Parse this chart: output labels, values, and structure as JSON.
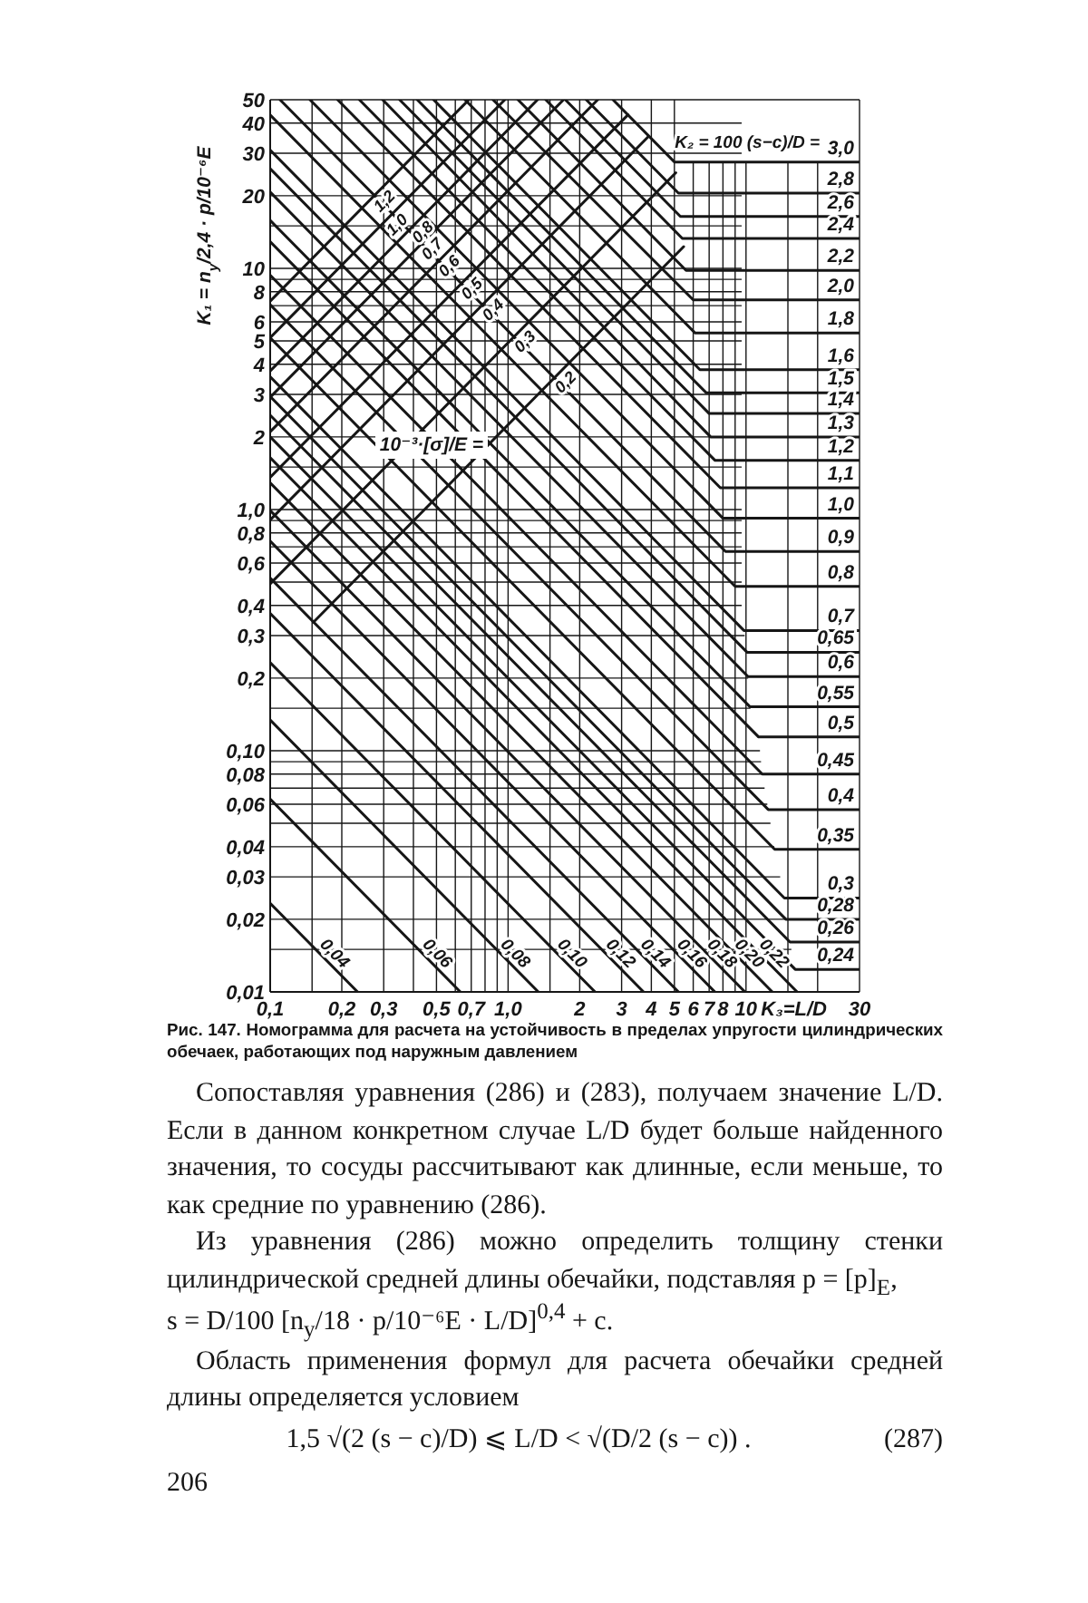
{
  "chart_data": {
    "type": "line",
    "title": "Рис. 147. Номограмма для расчета на устойчивость в пределах упругости цилиндрических обечаек, работающих под наружным давлением",
    "xlabel": "K₃=L/D",
    "ylabel": "K₁ = n$_{у}$/2,4 · p/10⁻⁶E",
    "log": "xy",
    "xlim": [
      0.1,
      30
    ],
    "ylim": [
      0.01,
      50
    ],
    "xticks": [
      {
        "value": 0.1,
        "label": "0,1"
      },
      {
        "value": 0.15,
        "label": null
      },
      {
        "value": 0.2,
        "label": "0,2"
      },
      {
        "value": 0.3,
        "label": "0,3"
      },
      {
        "value": 0.4,
        "label": null
      },
      {
        "value": 0.5,
        "label": "0,5"
      },
      {
        "value": 0.6,
        "label": null
      },
      {
        "value": 0.7,
        "label": "0,7"
      },
      {
        "value": 0.8,
        "label": null
      },
      {
        "value": 0.9,
        "label": null
      },
      {
        "value": 1,
        "label": "1,0"
      },
      {
        "value": 1.5,
        "label": null
      },
      2,
      3,
      4,
      5,
      6,
      7,
      8,
      {
        "value": 9,
        "label": null
      },
      10,
      {
        "value": 15,
        "label": null
      },
      {
        "value": 20,
        "label": null
      },
      30
    ],
    "yticks": [
      {
        "value": 0.01,
        "label": "0,01"
      },
      {
        "value": 0.015,
        "label": null
      },
      {
        "value": 0.02,
        "label": "0,02"
      },
      {
        "value": 0.03,
        "label": "0,03"
      },
      {
        "value": 0.04,
        "label": "0,04"
      },
      {
        "value": 0.05,
        "label": null
      },
      {
        "value": 0.06,
        "label": "0,06"
      },
      {
        "value": 0.07,
        "label": null
      },
      {
        "value": 0.08,
        "label": "0,08"
      },
      {
        "value": 0.09,
        "label": null
      },
      {
        "value": 0.1,
        "label": "0,10"
      },
      {
        "value": 0.15,
        "label": null
      },
      {
        "value": 0.2,
        "label": "0,2"
      },
      {
        "value": 0.3,
        "label": "0,3"
      },
      {
        "value": 0.4,
        "label": "0,4"
      },
      {
        "value": 0.5,
        "label": null
      },
      {
        "value": 0.6,
        "label": "0,6"
      },
      {
        "value": 0.7,
        "label": null
      },
      {
        "value": 0.8,
        "label": "0,8"
      },
      {
        "value": 0.9,
        "label": null
      },
      {
        "value": 1,
        "label": "1,0"
      },
      {
        "value": 1.5,
        "label": null
      },
      2,
      3,
      4,
      5,
      6,
      {
        "value": 7,
        "label": null
      },
      8,
      {
        "value": 9,
        "label": null
      },
      10,
      {
        "value": 15,
        "label": null
      },
      20,
      30,
      40,
      50
    ],
    "grid": true,
    "series": [
      {
        "name": "3,0",
        "color": "#161616",
        "x": [
          2.76,
          5.0,
          30
        ],
        "values": [
          50,
          27.6,
          27.6
        ]
      },
      {
        "name": "2,8",
        "color": "#161616",
        "x": [
          2.13,
          5.2,
          30
        ],
        "values": [
          50,
          20.5,
          20.5
        ]
      },
      {
        "name": "2,6",
        "color": "#161616",
        "x": [
          1.74,
          5.3,
          30
        ],
        "values": [
          50,
          16.4,
          16.4
        ]
      },
      {
        "name": "2,4",
        "color": "#161616",
        "x": [
          1.44,
          5.4,
          30
        ],
        "values": [
          50,
          13.3,
          13.3
        ]
      },
      {
        "name": "2,2",
        "color": "#161616",
        "x": [
          1.1,
          5.6,
          30
        ],
        "values": [
          50,
          9.8,
          9.8
        ]
      },
      {
        "name": "2,0",
        "color": "#161616",
        "x": [
          0.864,
          6.0,
          30
        ],
        "values": [
          50,
          7.4,
          7.4
        ]
      },
      {
        "name": "1,8",
        "color": "#161616",
        "x": [
          0.659,
          6.1,
          30
        ],
        "values": [
          50,
          5.4,
          5.4
        ]
      },
      {
        "name": "1,6",
        "color": "#161616",
        "x": [
          0.486,
          6.4,
          30
        ],
        "values": [
          50,
          3.8,
          3.8
        ]
      },
      {
        "name": "1,5",
        "color": "#161616",
        "x": [
          0.415,
          6.8,
          30
        ],
        "values": [
          50,
          3.05,
          3.05
        ]
      },
      {
        "name": "1,4",
        "color": "#161616",
        "x": [
          0.35,
          7.0,
          30
        ],
        "values": [
          50,
          2.5,
          2.5
        ]
      },
      {
        "name": "1,3",
        "color": "#161616",
        "x": [
          0.297,
          7.1,
          30
        ],
        "values": [
          50,
          2.0,
          2.0
        ]
      },
      {
        "name": "1,2",
        "color": "#161616",
        "x": [
          0.237,
          7.4,
          30
        ],
        "values": [
          50,
          1.6,
          1.6
        ]
      },
      {
        "name": "1,1",
        "color": "#161616",
        "x": [
          0.192,
          7.8,
          30
        ],
        "values": [
          50,
          1.23,
          1.23
        ]
      },
      {
        "name": "1,0",
        "color": "#161616",
        "x": [
          0.147,
          8.0,
          30
        ],
        "values": [
          50,
          0.92,
          0.92
        ]
      },
      {
        "name": "0,9",
        "color": "#161616",
        "x": [
          0.11,
          8.2,
          30
        ],
        "values": [
          50,
          0.67,
          0.67
        ]
      },
      {
        "name": "0,8",
        "color": "#161616",
        "x": [
          0.1,
          9.0,
          30
        ],
        "values": [
          43.2,
          0.48,
          0.48
        ]
      },
      {
        "name": "0,7",
        "color": "#161616",
        "x": [
          0.1,
          9.8,
          30
        ],
        "values": [
          30.9,
          0.315,
          0.315
        ]
      },
      {
        "name": "0,65",
        "color": "#161616",
        "x": [
          0.1,
          10.1,
          30
        ],
        "values": [
          25.9,
          0.256,
          0.256
        ]
      },
      {
        "name": "0,6",
        "color": "#161616",
        "x": [
          0.1,
          10.2,
          30
        ],
        "values": [
          20.7,
          0.203,
          0.203
        ]
      },
      {
        "name": "0,55",
        "color": "#161616",
        "x": [
          0.1,
          10.4,
          30
        ],
        "values": [
          15.8,
          0.152,
          0.152
        ]
      },
      {
        "name": "0,5",
        "color": "#161616",
        "x": [
          0.1,
          11.3,
          30
        ],
        "values": [
          12.9,
          0.114,
          0.114
        ]
      },
      {
        "name": "0,45",
        "color": "#161616",
        "x": [
          0.1,
          11.7,
          30
        ],
        "values": [
          9.36,
          0.08,
          0.08
        ]
      },
      {
        "name": "0,4",
        "color": "#161616",
        "x": [
          0.1,
          12.4,
          30
        ],
        "values": [
          7.07,
          0.057,
          0.057
        ]
      },
      {
        "name": "0,35",
        "color": "#161616",
        "x": [
          0.1,
          13.2,
          30
        ],
        "values": [
          5.15,
          0.039,
          0.039
        ]
      },
      {
        "name": "0,3",
        "color": "#161616",
        "x": [
          0.1,
          14.5,
          30
        ],
        "values": [
          3.55,
          0.0245,
          0.0245
        ]
      },
      {
        "name": "0,28",
        "color": "#161616",
        "x": [
          0.1,
          14.7,
          30
        ],
        "values": [
          2.94,
          0.02,
          0.02
        ]
      },
      {
        "name": "0,26",
        "color": "#161616",
        "x": [
          0.1,
          15.3,
          30
        ],
        "values": [
          2.46,
          0.0161,
          0.0161
        ]
      },
      {
        "name": "0,24",
        "color": "#161616",
        "x": [
          0.1,
          16.1,
          30
        ],
        "values": [
          2.0,
          0.0124,
          0.0124
        ]
      },
      {
        "name": "0,22",
        "color": "#161616",
        "x": [
          0.1,
          16.4
        ],
        "values": [
          1.64,
          0.01
        ]
      },
      {
        "name": "0,20",
        "color": "#161616",
        "x": [
          0.1,
          12.9
        ],
        "values": [
          1.29,
          0.01
        ]
      },
      {
        "name": "0,18",
        "color": "#161616",
        "x": [
          0.1,
          9.9
        ],
        "values": [
          0.99,
          0.01
        ]
      },
      {
        "name": "0,16",
        "color": "#161616",
        "x": [
          0.1,
          7.4
        ],
        "values": [
          0.74,
          0.01
        ]
      },
      {
        "name": "0,14",
        "color": "#161616",
        "x": [
          0.1,
          5.2
        ],
        "values": [
          0.52,
          0.01
        ]
      },
      {
        "name": "0,12",
        "color": "#161616",
        "x": [
          0.1,
          3.71
        ],
        "values": [
          0.371,
          0.01
        ]
      },
      {
        "name": "0,10",
        "color": "#161616",
        "x": [
          0.1,
          2.32
        ],
        "values": [
          0.232,
          0.01
        ]
      },
      {
        "name": "0,08",
        "color": "#161616",
        "x": [
          0.1,
          1.34
        ],
        "values": [
          0.134,
          0.01
        ]
      },
      {
        "name": "0,06",
        "color": "#161616",
        "x": [
          0.1,
          0.63
        ],
        "values": [
          0.063,
          0.01
        ]
      },
      {
        "name": "0,04",
        "color": "#161616",
        "x": [
          0.1,
          0.233
        ],
        "values": [
          0.0233,
          0.01
        ]
      },
      {
        "name": "1,2",
        "color": "#161616",
        "x": [
          0.1,
          0.684
        ],
        "values": [
          7.31,
          50
        ]
      },
      {
        "name": "1,0",
        "color": "#161616",
        "x": [
          0.1,
          0.969
        ],
        "values": [
          5.16,
          50
        ]
      },
      {
        "name": "0,8",
        "color": "#161616",
        "x": [
          0.1,
          1.33
        ],
        "values": [
          3.75,
          50
        ]
      },
      {
        "name": "0,7",
        "color": "#161616",
        "x": [
          0.1,
          1.71
        ],
        "values": [
          2.92,
          50
        ]
      },
      {
        "name": "0,6",
        "color": "#161616",
        "x": [
          0.1,
          2.38
        ],
        "values": [
          2.1,
          50
        ]
      },
      {
        "name": "0,5",
        "color": "#161616",
        "x": [
          0.1,
          3.19
        ],
        "values": [
          1.36,
          43.3
        ]
      },
      {
        "name": "0,4",
        "color": "#161616",
        "x": [
          0.1,
          3.9
        ],
        "values": [
          0.905,
          35.3
        ]
      },
      {
        "name": "0,3",
        "color": "#161616",
        "x": [
          0.1,
          5.07
        ],
        "values": [
          0.492,
          24.9
        ]
      },
      {
        "name": "0,2",
        "color": "#161616",
        "x": [
          0.152,
          5.47
        ],
        "values": [
          0.341,
          12.3
        ]
      }
    ],
    "annotations": [
      {
        "text": "K₂ = 100 (s−c)/D =",
        "x": 21.5,
        "y": 27.6
      },
      {
        "text": "10⁻³·[σ]/E =",
        "x": 0.423,
        "y": 2.08
      },
      "Сопоставляя уравнения (286) и (283), получаем значение L/D. Если в данном конкретном случае L/D будет больше найденного значения, то сосуды рассчитывают как длинные, если меньше, то как средние по уравнению (286).",
      "Из уравнения (286) можно определить толщину стенки цилиндрической средней длины обечайки, подставляя p = [p]$_{E}$,",
      "s = D/100 [n$_{у}$/18 · p/10⁻⁶E · L/D]$^{0,4}$ + c.",
      "Область применения формул для расчета обечайки средней длины определяется условием",
      "1,5 √(2 (s − c)/D) ⩽ L/D < √(D/2 (s − c)) .",
      "(287)",
      "206"
    ]
  }
}
